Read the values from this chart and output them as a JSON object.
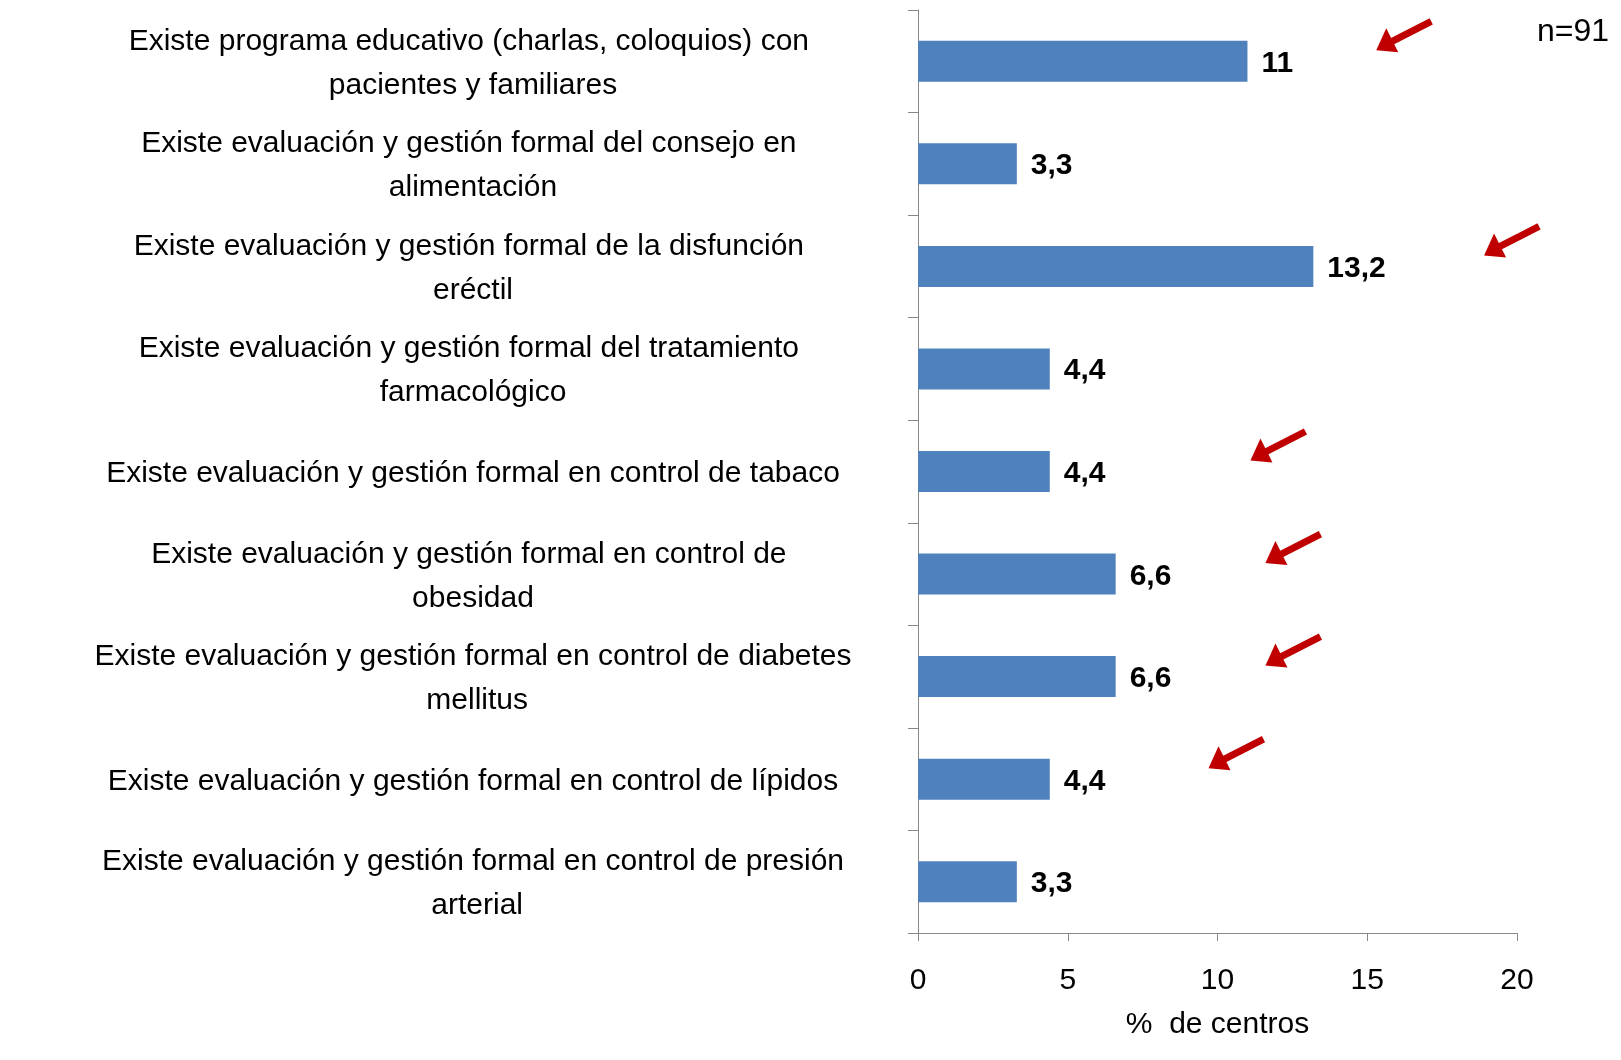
{
  "chart_data": {
    "type": "bar",
    "orientation": "horizontal",
    "xlabel": "%  de centros",
    "categories": [
      "Existe programa educativo (charlas, coloquios) con pacientes y familiares",
      "Existe evaluación y gestión formal del consejo en alimentación",
      "Existe evaluación y gestión formal de la disfunción eréctil",
      "Existe evaluación y gestión formal del tratamiento farmacológico",
      "Existe evaluación y gestión formal en control de tabaco",
      "Existe evaluación y gestión formal en control de obesidad",
      "Existe evaluación y gestión formal en control de diabetes mellitus",
      "Existe evaluación y gestión formal en control de lípidos",
      "Existe evaluación y gestión formal en control de presión arterial"
    ],
    "values": [
      11,
      3.3,
      13.2,
      4.4,
      4.4,
      6.6,
      6.6,
      4.4,
      3.3
    ],
    "value_labels": [
      "11",
      "3,3",
      "13,2",
      "4,4",
      "4,4",
      "6,6",
      "6,6",
      "4,4",
      "3,3"
    ],
    "color": "#4f81bd",
    "xlim": [
      0,
      20
    ],
    "xticks": [
      0,
      5,
      10,
      15,
      20
    ],
    "grid": false,
    "annotations": [
      "n=91"
    ]
  }
}
